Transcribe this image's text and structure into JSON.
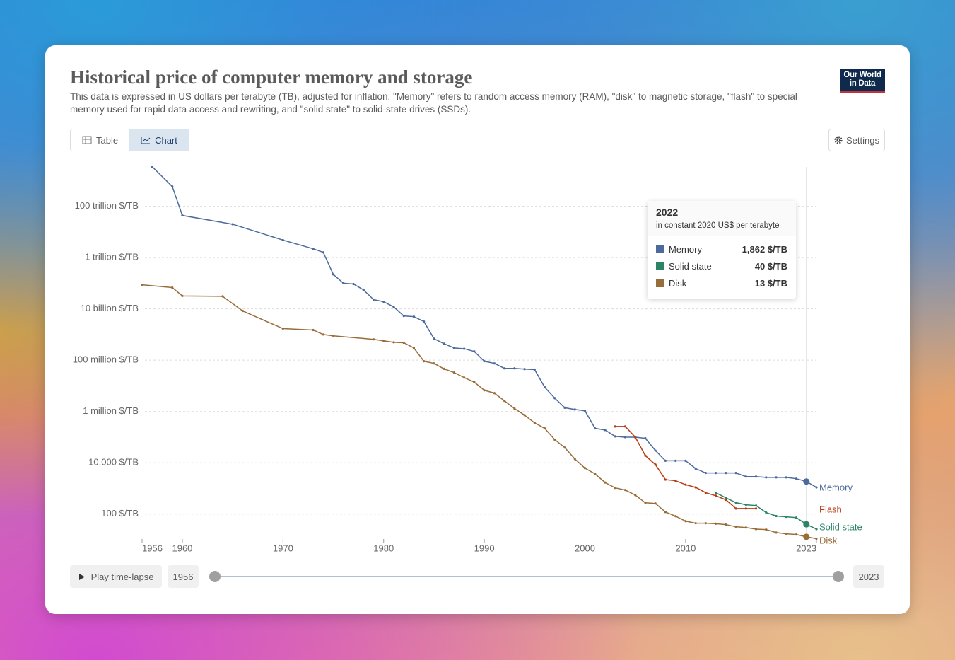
{
  "header": {
    "title": "Historical price of computer memory and storage",
    "subtitle": "This data is expressed in US dollars per terabyte (TB), adjusted for inflation. \"Memory\" refers to random access memory (RAM), \"disk\" to magnetic storage, \"flash\" to special memory used for rapid data access and rewriting, and \"solid state\" to solid-state drives (SSDs).",
    "logo": [
      "Our World",
      "in Data"
    ]
  },
  "tabs": [
    "Table",
    "Chart"
  ],
  "settings": "Settings",
  "play": "Play time-lapse",
  "chart_data": {
    "type": "line",
    "yscale": "log",
    "grid": true,
    "xlim": [
      1956,
      2023
    ],
    "xticks": [
      1956,
      1960,
      1970,
      1980,
      1990,
      2000,
      2010,
      2023
    ],
    "ylim": [
      10,
      5000000000000000.0
    ],
    "yticks": [
      {
        "value": 100,
        "label": "100 $/TB"
      },
      {
        "value": 10000,
        "label": "10,000 $/TB"
      },
      {
        "value": 1000000,
        "label": "1 million $/TB"
      },
      {
        "value": 100000000,
        "label": "100 million $/TB"
      },
      {
        "value": 10000000000,
        "label": "10 billion $/TB"
      },
      {
        "value": 1000000000000,
        "label": "1 trillion $/TB"
      },
      {
        "value": 100000000000000,
        "label": "100 trillion $/TB"
      }
    ],
    "series": [
      {
        "name": "Memory",
        "color": "#4c6a9c",
        "x": [
          1957,
          1959,
          1960,
          1965,
          1970,
          1973,
          1974,
          1975,
          1976,
          1977,
          1978,
          1979,
          1980,
          1981,
          1982,
          1983,
          1984,
          1985,
          1986,
          1987,
          1988,
          1989,
          1990,
          1991,
          1992,
          1993,
          1994,
          1995,
          1996,
          1997,
          1998,
          1999,
          2000,
          2001,
          2002,
          2003,
          2004,
          2005,
          2006,
          2007,
          2008,
          2009,
          2010,
          2011,
          2012,
          2013,
          2014,
          2015,
          2016,
          2017,
          2018,
          2019,
          2020,
          2021,
          2022,
          2023
        ],
        "values": [
          3500000000000000.0,
          590000000000000.0,
          44000000000000.0,
          20000000000000.0,
          4800000000000.0,
          2200000000000.0,
          1600000000000.0,
          220000000000.0,
          100000000000.0,
          93000000000.0,
          55000000000.0,
          23000000000.0,
          19000000000.0,
          12000000000.0,
          5300000000.0,
          5000000000.0,
          3200000000.0,
          690000000.0,
          440000000.0,
          300000000.0,
          280000000.0,
          220000000.0,
          91000000.0,
          75000000.0,
          48000000.0,
          48000000.0,
          45000000.0,
          43000000.0,
          8800000.0,
          3300000.0,
          1400000.0,
          1200000.0,
          1070000.0,
          220000.0,
          190000.0,
          107000.0,
          100000.0,
          100000.0,
          90000.0,
          30000.0,
          12000.0,
          12000.0,
          12000.0,
          5900,
          4000,
          4000,
          4000,
          4000,
          2900,
          2900,
          2700,
          2700,
          2700,
          2400,
          1862,
          1100
        ]
      },
      {
        "name": "Flash",
        "color": "#b83a12",
        "x": [
          2003,
          2004,
          2005,
          2006,
          2007,
          2008,
          2009,
          2010,
          2011,
          2012,
          2013,
          2014,
          2015,
          2016,
          2017
        ],
        "values": [
          260000.0,
          260000.0,
          100000.0,
          19000.0,
          8500,
          2200,
          2000,
          1400,
          1100,
          680,
          520,
          360,
          165,
          165,
          165
        ]
      },
      {
        "name": "Solid state",
        "color": "#2c8465",
        "x": [
          2013,
          2014,
          2015,
          2016,
          2017,
          2018,
          2019,
          2020,
          2021,
          2022,
          2023
        ],
        "values": [
          680,
          430,
          280,
          230,
          215,
          115,
          84,
          78,
          73,
          40,
          26
        ]
      },
      {
        "name": "Disk",
        "color": "#986d39",
        "x": [
          1956,
          1959,
          1960,
          1964,
          1966,
          1970,
          1973,
          1974,
          1975,
          1979,
          1980,
          1981,
          1982,
          1983,
          1984,
          1985,
          1986,
          1987,
          1988,
          1989,
          1990,
          1991,
          1992,
          1993,
          1994,
          1995,
          1996,
          1997,
          1998,
          1999,
          2000,
          2001,
          2002,
          2003,
          2004,
          2005,
          2006,
          2007,
          2008,
          2009,
          2010,
          2011,
          2012,
          2013,
          2014,
          2015,
          2016,
          2017,
          2018,
          2019,
          2020,
          2021,
          2022,
          2023
        ],
        "values": [
          87000000000.0,
          68000000000.0,
          32000000000.0,
          31000000000.0,
          8300000000.0,
          1700000000.0,
          1500000000.0,
          1000000000.0,
          890000000.0,
          650000000.0,
          570000000.0,
          500000000.0,
          480000000.0,
          300000000.0,
          91000000.0,
          75000000.0,
          46000000.0,
          33000000.0,
          21000000.0,
          14000000.0,
          6700000.0,
          5200000.0,
          2600000.0,
          1300000.0,
          720000.0,
          360000.0,
          220000.0,
          80000.0,
          39000.0,
          14000.0,
          6200,
          3700,
          1700,
          1050,
          870,
          550,
          275,
          260,
          120,
          83,
          53,
          44,
          44,
          42,
          39,
          32,
          30,
          26,
          25,
          19,
          17,
          16,
          13,
          11
        ]
      }
    ],
    "tooltip": {
      "x": 2022,
      "subtitle": "in constant 2020 US$ per terabyte",
      "items": [
        {
          "name": "Memory",
          "color": "#4c6a9c",
          "value": 1862,
          "label": "1,862 $/TB"
        },
        {
          "name": "Solid state",
          "color": "#2c8465",
          "value": 40,
          "label": "40 $/TB"
        },
        {
          "name": "Disk",
          "color": "#986d39",
          "value": 13,
          "label": "13 $/TB"
        }
      ]
    }
  }
}
